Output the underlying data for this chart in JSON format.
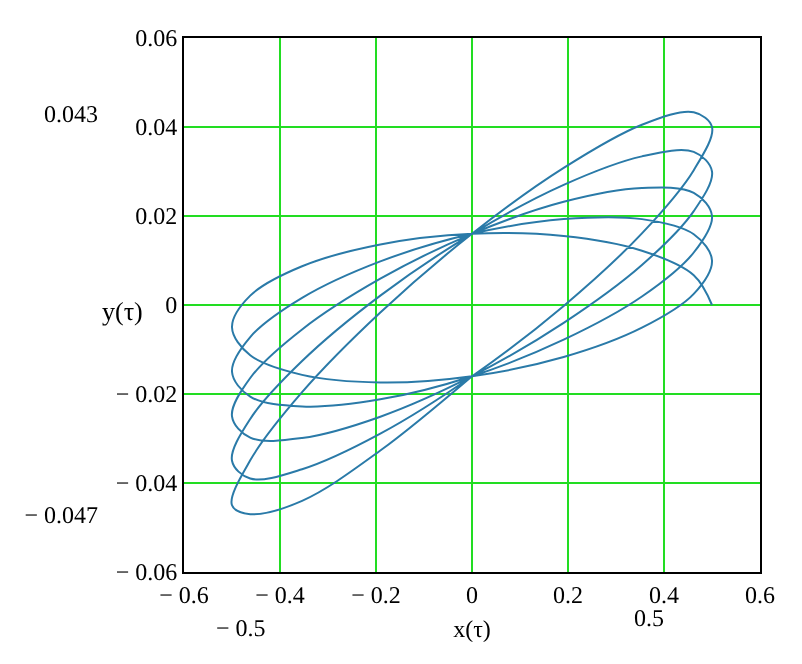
{
  "chart_data": {
    "type": "line",
    "xlabel": "x(τ)",
    "ylabel": "y(τ)",
    "annotations": [
      "− 0.5",
      "0.5"
    ],
    "y2lim": [
      -0.06,
      0.06
    ],
    "y2ticks": [
      0.043,
      {
        "value": -0.047,
        "label": "− 0.047"
      }
    ],
    "xlim": [
      -0.6,
      0.6
    ],
    "ylim": [
      -0.06,
      0.06
    ],
    "xticks": [
      {
        "value": -0.6,
        "label": "− 0.6"
      },
      {
        "value": -0.4,
        "label": "− 0.4"
      },
      {
        "value": -0.2,
        "label": "− 0.2"
      },
      0,
      0.2,
      0.4,
      0.6
    ],
    "yticks": [
      {
        "value": -0.06,
        "label": "− 0.06"
      },
      {
        "value": -0.04,
        "label": "− 0.04"
      },
      {
        "value": -0.02,
        "label": "− 0.02"
      },
      0,
      0.02,
      0.04,
      0.06
    ],
    "grid": true,
    "legend": false,
    "marker": "none",
    "line_style": "solid",
    "series": [
      {
        "color": "#2a7aa8",
        "x": [
          0.5,
          0.462,
          0.354,
          0.191,
          0,
          -0.191,
          -0.354,
          -0.462,
          -0.5,
          -0.462,
          -0.354,
          -0.191,
          0,
          0.191,
          0.354,
          0.462,
          0.5,
          0.462,
          0.354,
          0.191,
          0,
          -0.191,
          -0.354,
          -0.462,
          -0.5,
          -0.462,
          -0.354,
          -0.191,
          0,
          0.191,
          0.354,
          0.462,
          0.5,
          0.462,
          0.354,
          0.191,
          0,
          -0.191,
          -0.354,
          -0.462,
          -0.5,
          -0.462,
          -0.354,
          -0.191,
          0,
          0.191,
          0.354,
          0.462,
          0.5,
          0.462,
          0.354,
          0.191,
          0,
          -0.191,
          -0.354,
          -0.462,
          -0.5,
          -0.462,
          -0.354,
          -0.191,
          0,
          0.191,
          0.354,
          0.462,
          0.5,
          0.462,
          0.354,
          0.191,
          0,
          -0.191,
          -0.354,
          -0.462,
          -0.5,
          -0.462,
          -0.354,
          -0.191,
          0
        ],
        "values": [
          0,
          0.0067,
          0.0122,
          0.0155,
          0.016,
          0.0136,
          0.0087,
          0.0021,
          -0.005,
          -0.0113,
          -0.0157,
          -0.0174,
          -0.016,
          -0.0117,
          -0.0051,
          0.0025,
          0.01,
          0.0159,
          0.0193,
          0.0193,
          0.016,
          0.0098,
          0.0016,
          -0.0072,
          -0.015,
          -0.0206,
          -0.0228,
          -0.0212,
          -0.016,
          -0.0078,
          0.0019,
          0.0118,
          0.02,
          0.0252,
          0.0263,
          0.0232,
          0.016,
          0.0059,
          -0.0055,
          -0.0164,
          -0.025,
          -0.0298,
          -0.0299,
          -0.0251,
          -0.016,
          -0.004,
          0.009,
          0.0211,
          0.03,
          0.0344,
          0.0334,
          0.027,
          0.016,
          0.0021,
          -0.0126,
          -0.0256,
          -0.035,
          -0.039,
          -0.0369,
          -0.0289,
          -0.016,
          -0.0002,
          0.0161,
          0.0303,
          0.04,
          0.0433,
          0.0405,
          0.0308,
          0.016,
          -0.0017,
          -0.0196,
          -0.0349,
          -0.045,
          -0.047,
          -0.044,
          -0.0327,
          -0.016
        ]
      }
    ]
  }
}
